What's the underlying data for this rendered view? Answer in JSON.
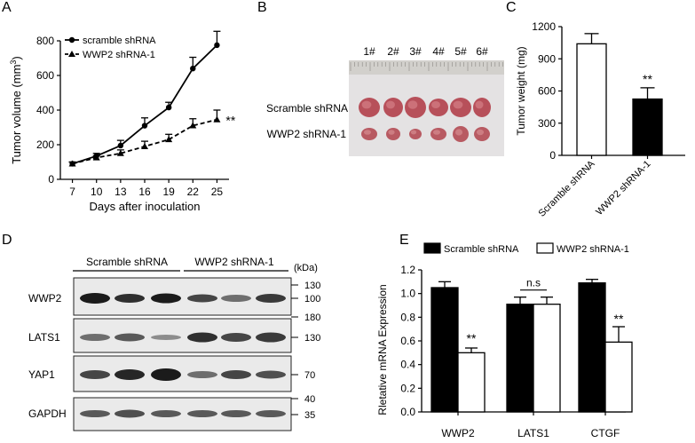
{
  "panels": {
    "A": "A",
    "B": "B",
    "C": "C",
    "D": "D",
    "E": "E"
  },
  "chart_data": [
    {
      "panel": "A",
      "type": "line",
      "title": "",
      "xlabel": "Days after inoculation",
      "ylabel_main": "Tumor volume (mm",
      "ylabel_sup": "3",
      "ylabel_end": ")",
      "x": [
        7,
        10,
        13,
        16,
        19,
        22,
        25
      ],
      "xticks": [
        "7",
        "10",
        "13",
        "16",
        "19",
        "22",
        "25"
      ],
      "yticks": [
        "0",
        "200",
        "400",
        "600",
        "800"
      ],
      "ylim": [
        0,
        800
      ],
      "series": [
        {
          "name": "scramble shRNA",
          "values": [
            90,
            135,
            195,
            310,
            415,
            640,
            775
          ],
          "errors": [
            10,
            15,
            30,
            45,
            30,
            65,
            80
          ],
          "marker": "circle",
          "line": "solid"
        },
        {
          "name": "WWP2 shRNA-1",
          "values": [
            90,
            125,
            150,
            190,
            230,
            310,
            345
          ],
          "errors": [
            10,
            12,
            20,
            30,
            30,
            40,
            55
          ],
          "marker": "triangle",
          "line": "dashed"
        }
      ],
      "significance": "**"
    },
    {
      "panel": "C",
      "type": "bar",
      "ylabel": "Tumor weight (mg)",
      "categories": [
        "Scramble shRNA",
        "WWP2 shRNA-1"
      ],
      "values": [
        1040,
        525
      ],
      "errors": [
        95,
        105
      ],
      "colors": [
        "#ffffff",
        "#000000"
      ],
      "yticks": [
        "0",
        "300",
        "600",
        "900",
        "1200"
      ],
      "ylim": [
        0,
        1200
      ],
      "significance": "**"
    },
    {
      "panel": "E",
      "type": "bar",
      "ylabel": "Rletative mRNA Expression",
      "categories": [
        "WWP2",
        "LATS1",
        "CTGF"
      ],
      "series": [
        {
          "name": "Scramble shRNA",
          "values": [
            1.05,
            0.91,
            1.09
          ],
          "errors": [
            0.05,
            0.06,
            0.03
          ],
          "color": "#000000"
        },
        {
          "name": "WWP2 shRNA-1",
          "values": [
            0.5,
            0.91,
            0.59
          ],
          "errors": [
            0.04,
            0.06,
            0.13
          ],
          "color": "#ffffff"
        }
      ],
      "annotations": [
        "**",
        "n.s",
        "**"
      ],
      "yticks": [
        "0.0",
        "0.2",
        "0.4",
        "0.6",
        "0.8",
        "1.0",
        "1.2"
      ],
      "ylim": [
        0,
        1.2
      ]
    }
  ],
  "photo": {
    "labels": [
      "1#",
      "2#",
      "3#",
      "4#",
      "5#",
      "6#"
    ],
    "row_labels": [
      "Scramble shRNA",
      "WWP2 shRNA-1"
    ]
  },
  "blot": {
    "group_labels": [
      "Scramble shRNA",
      "WWP2 shRNA-1"
    ],
    "kda_label": "(kDa)",
    "rows": [
      {
        "name": "WWP2",
        "markers": [
          "130",
          "100"
        ]
      },
      {
        "name": "LATS1",
        "markers": [
          "180",
          "130"
        ]
      },
      {
        "name": "YAP1",
        "markers": [
          "70"
        ]
      },
      {
        "name": "GAPDH",
        "markers": [
          "40",
          "35"
        ]
      }
    ]
  }
}
